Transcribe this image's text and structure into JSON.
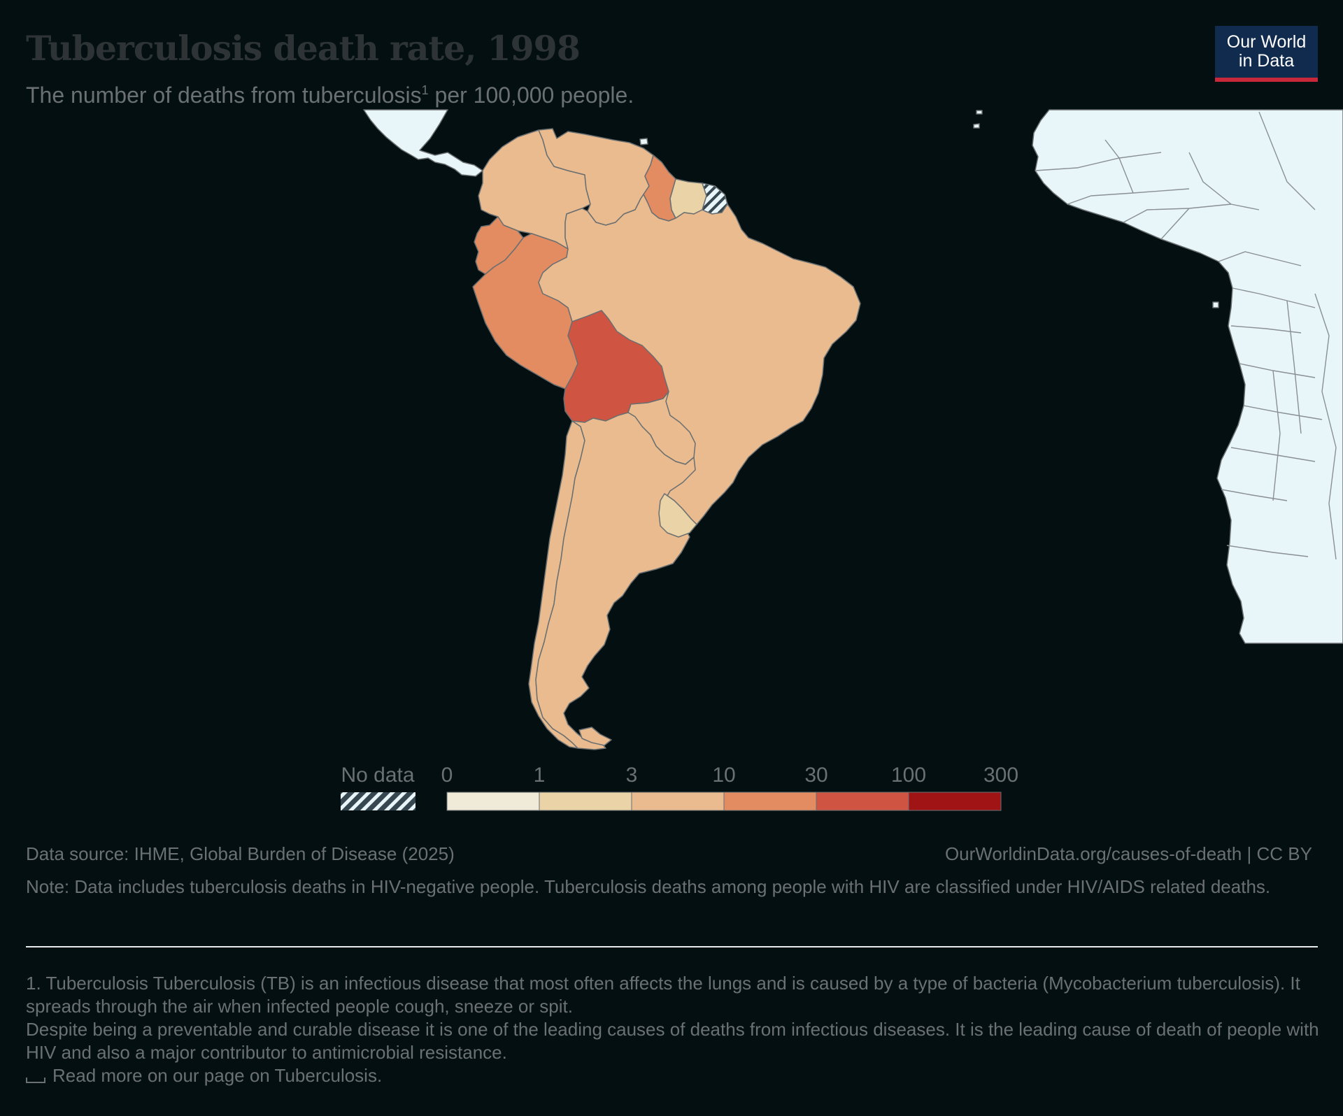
{
  "header": {
    "title": "Tuberculosis death rate, 1998",
    "subtitle_text": "The number of deaths from tuberculosis",
    "subtitle_footnote_marker": "1",
    "subtitle_suffix": " per 100,000 people."
  },
  "logo": {
    "line1": "Our World",
    "line2": "in Data",
    "background": "#102b4d",
    "accent": "#c8283a"
  },
  "legend": {
    "no_data_label": "No data",
    "bins": [
      {
        "from": "0",
        "to": "1",
        "color": "#f0ead8"
      },
      {
        "from": "1",
        "to": "3",
        "color": "#ead3a6"
      },
      {
        "from": "3",
        "to": "10",
        "color": "#e9bb8e"
      },
      {
        "from": "10",
        "to": "30",
        "color": "#e38c61"
      },
      {
        "from": "30",
        "to": "100",
        "color": "#cf5441"
      },
      {
        "from": "100",
        "to": "300",
        "color": "#a01416"
      }
    ],
    "tick_labels": [
      "0",
      "1",
      "3",
      "10",
      "30",
      "100",
      "300"
    ]
  },
  "map": {
    "region": "South America",
    "no_data_color": "#e8f6fa",
    "country_bins": [
      {
        "country": "Colombia",
        "bin": "3–10"
      },
      {
        "country": "Venezuela",
        "bin": "3–10"
      },
      {
        "country": "Guyana",
        "bin": "10–30"
      },
      {
        "country": "Suriname",
        "bin": "1–3"
      },
      {
        "country": "French Guiana",
        "bin": "No data"
      },
      {
        "country": "Ecuador",
        "bin": "10–30"
      },
      {
        "country": "Peru",
        "bin": "10–30"
      },
      {
        "country": "Brazil",
        "bin": "3–10"
      },
      {
        "country": "Bolivia",
        "bin": "30–100"
      },
      {
        "country": "Paraguay",
        "bin": "3–10"
      },
      {
        "country": "Chile",
        "bin": "3–10"
      },
      {
        "country": "Argentina",
        "bin": "3–10"
      },
      {
        "country": "Uruguay",
        "bin": "1–3"
      }
    ]
  },
  "footer": {
    "source": "Data source: IHME, Global Burden of Disease (2025)",
    "url": "OurWorldinData.org/causes-of-death | CC BY",
    "note": "Note: Data includes tuberculosis deaths in HIV-negative people. Tuberculosis deaths among people with HIV are classified under HIV/AIDS related deaths."
  },
  "footnotes": {
    "line1": "1. Tuberculosis Tuberculosis (TB) is an infectious disease that most often affects the lungs and is caused by a type of bacteria (Mycobacterium tuberculosis). It spreads through the air when infected people cough, sneeze or spit.",
    "line2": "Despite being a preventable and curable disease it is one of the leading causes of deaths from infectious diseases. It is the leading cause of death of people with HIV and also a major contributor to antimicrobial resistance.",
    "read_more": "Read more on our page on Tuberculosis."
  }
}
